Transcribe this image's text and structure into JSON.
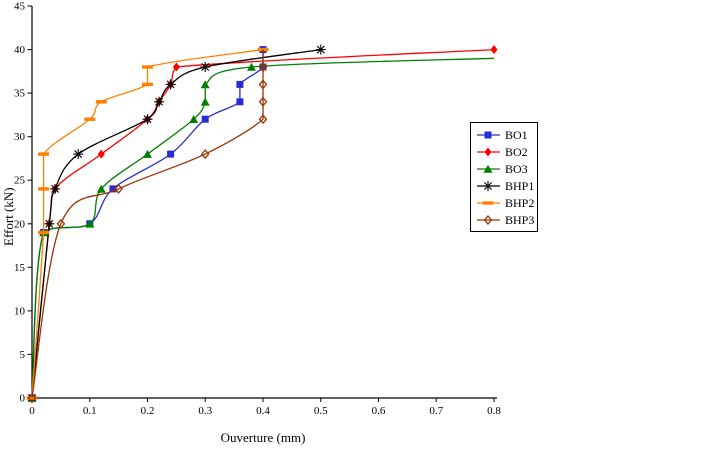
{
  "chart_data": {
    "type": "line",
    "title": "",
    "xlabel": "Ouverture (mm)",
    "ylabel": "Effort (kN)",
    "xlim": [
      0,
      0.8
    ],
    "ylim": [
      0,
      45
    ],
    "grid": false,
    "legend_position": "right",
    "xtick_values": [
      0,
      0.1,
      0.2,
      0.3,
      0.4,
      0.5,
      0.6,
      0.7,
      0.8
    ],
    "xtick_labels": [
      "0",
      "0.1",
      "0.2",
      "0.3",
      "0.4",
      "0.5",
      "0.6",
      "0.7",
      "0.8"
    ],
    "ytick_values": [
      0,
      5,
      10,
      15,
      20,
      25,
      30,
      35,
      40,
      45
    ],
    "ytick_labels": [
      "0",
      "5",
      "10",
      "15",
      "20",
      "25",
      "30",
      "35",
      "40",
      "45"
    ],
    "series": [
      {
        "name": "BO1",
        "color": "#2A2AD4",
        "marker": "square",
        "points": [
          [
            0,
            0
          ],
          [
            0.02,
            19
          ],
          [
            0.1,
            20
          ],
          [
            0.14,
            24
          ],
          [
            0.24,
            28
          ],
          [
            0.3,
            32
          ],
          [
            0.36,
            34
          ],
          [
            0.36,
            36
          ],
          [
            0.4,
            38
          ],
          [
            0.4,
            40
          ]
        ]
      },
      {
        "name": "BO2",
        "color": "#FF0000",
        "marker": "diamond",
        "points": [
          [
            0,
            0
          ],
          [
            0.03,
            20
          ],
          [
            0.04,
            24
          ],
          [
            0.12,
            28
          ],
          [
            0.2,
            32
          ],
          [
            0.22,
            34
          ],
          [
            0.24,
            36
          ],
          [
            0.25,
            38
          ],
          [
            0.8,
            40
          ]
        ]
      },
      {
        "name": "BO3",
        "color": "#008000",
        "marker": "triangle",
        "marker_skip_last": true,
        "points": [
          [
            0,
            0
          ],
          [
            0.02,
            19
          ],
          [
            0.1,
            20
          ],
          [
            0.12,
            24
          ],
          [
            0.2,
            28
          ],
          [
            0.28,
            32
          ],
          [
            0.3,
            34
          ],
          [
            0.3,
            36
          ],
          [
            0.38,
            38
          ],
          [
            0.8,
            39
          ]
        ]
      },
      {
        "name": "BHP1",
        "color": "#000000",
        "marker": "star",
        "points": [
          [
            0,
            0
          ],
          [
            0.03,
            20
          ],
          [
            0.04,
            24
          ],
          [
            0.08,
            28
          ],
          [
            0.2,
            32
          ],
          [
            0.22,
            34
          ],
          [
            0.24,
            36
          ],
          [
            0.3,
            38
          ],
          [
            0.5,
            40
          ]
        ]
      },
      {
        "name": "BHP2",
        "color": "#FF8000",
        "marker": "dash",
        "points": [
          [
            0,
            0
          ],
          [
            0.02,
            19
          ],
          [
            0.02,
            24
          ],
          [
            0.02,
            28
          ],
          [
            0.1,
            32
          ],
          [
            0.12,
            34
          ],
          [
            0.2,
            36
          ],
          [
            0.2,
            38
          ],
          [
            0.4,
            40
          ]
        ]
      },
      {
        "name": "BHP3",
        "color": "#993300",
        "marker": "open-diamond",
        "marker_skip_last": true,
        "points": [
          [
            0,
            0
          ],
          [
            0.05,
            20
          ],
          [
            0.15,
            24
          ],
          [
            0.3,
            28
          ],
          [
            0.4,
            32
          ],
          [
            0.4,
            34
          ],
          [
            0.4,
            36
          ],
          [
            0.4,
            38
          ],
          [
            0.4,
            40
          ]
        ]
      }
    ]
  }
}
